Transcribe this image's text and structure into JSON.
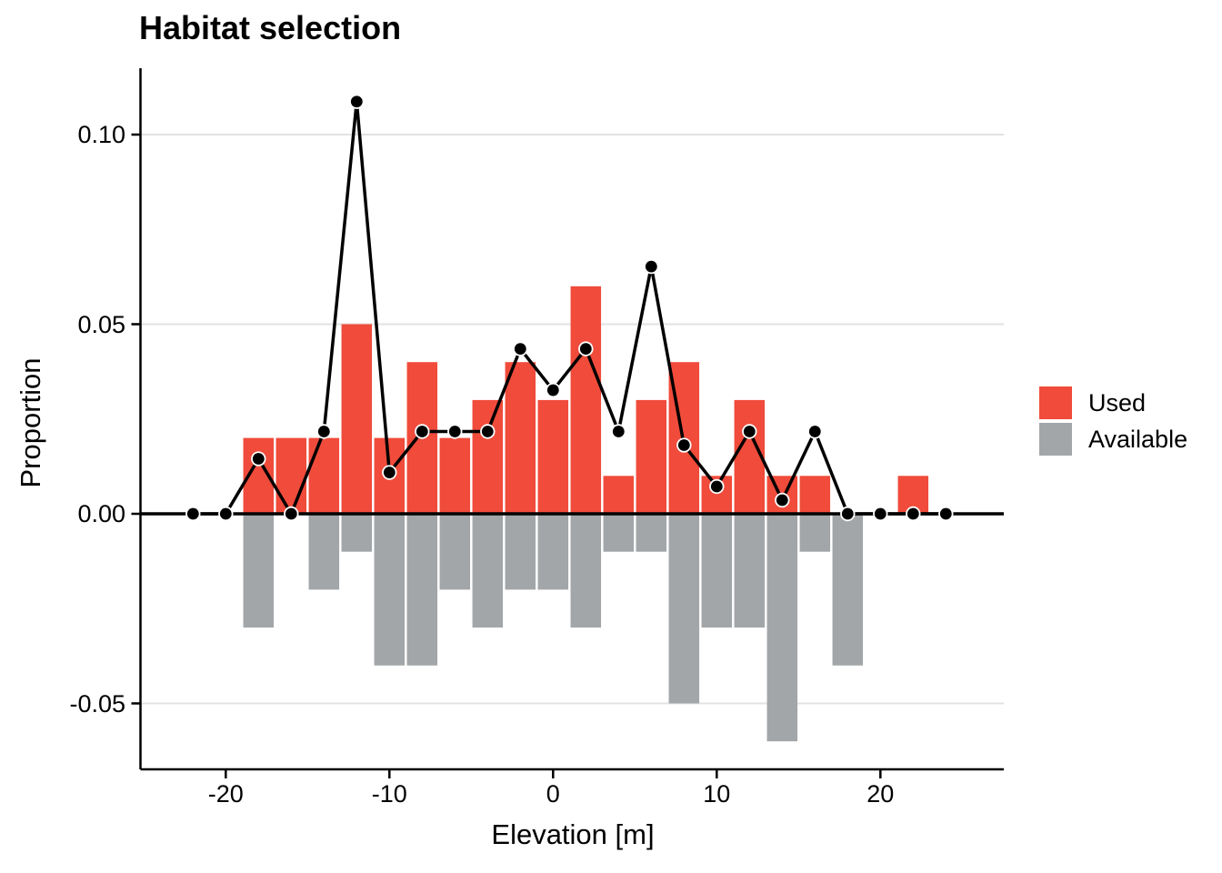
{
  "title": "Habitat selection",
  "axes": {
    "x_label": "Elevation [m]",
    "y_label": "Proportion",
    "x_tick_values": [
      -20,
      -10,
      0,
      10,
      20
    ],
    "x_tick_labels": [
      "-20",
      "-10",
      "0",
      "10",
      "20"
    ],
    "y_tick_values": [
      0.1,
      0.05,
      0.0,
      -0.05
    ],
    "y_tick_labels": [
      "0.10",
      "0.05",
      "0.00",
      "-0.05"
    ]
  },
  "legend": {
    "position": "right",
    "items": [
      {
        "label": "Used",
        "color": "#F04B3B"
      },
      {
        "label": "Available",
        "color": "#A2A6A9"
      }
    ]
  },
  "colors": {
    "used_bar": "#F04B3B",
    "available_bar": "#A2A6A9",
    "line": "#000000",
    "point_fill": "#000000",
    "point_ring": "#FFFFFF",
    "grid": "#E2E2E2",
    "axis": "#000000",
    "zero_line": "#000000",
    "text": "#000000",
    "background": "#FFFFFF"
  },
  "chart_data": {
    "type": "bar",
    "subtype": "back-to-back histogram (Used plotted upward, Available plotted downward as negative) with an overlaid black line-and-point series",
    "title": "Habitat selection",
    "xlabel": "Elevation [m]",
    "ylabel": "Proportion",
    "bin_width": 2,
    "x": [
      -22,
      -20,
      -18,
      -16,
      -14,
      -12,
      -10,
      -8,
      -6,
      -4,
      -2,
      0,
      2,
      4,
      6,
      8,
      10,
      12,
      14,
      16,
      18,
      20,
      22,
      24
    ],
    "series": [
      {
        "name": "Used",
        "type": "bar",
        "direction": "up",
        "color": "#F04B3B",
        "values": [
          0,
          0,
          0.02,
          0.02,
          0.02,
          0.05,
          0.02,
          0.04,
          0.02,
          0.03,
          0.04,
          0.03,
          0.06,
          0.01,
          0.03,
          0.04,
          0.01,
          0.03,
          0.01,
          0.01,
          0,
          0,
          0.01,
          0
        ]
      },
      {
        "name": "Available",
        "type": "bar",
        "direction": "down",
        "color": "#A2A6A9",
        "values": [
          0,
          0,
          0.03,
          0,
          0.02,
          0.01,
          0.04,
          0.04,
          0.02,
          0.03,
          0.02,
          0.02,
          0.03,
          0.01,
          0.01,
          0.05,
          0.03,
          0.03,
          0.06,
          0.01,
          0.04,
          0,
          0,
          0
        ]
      },
      {
        "name": "Used (line)",
        "type": "line+points",
        "color": "#000000",
        "values": [
          0,
          0,
          0.0145,
          0,
          0.0217,
          0.1087,
          0.0109,
          0.0217,
          0.0217,
          0.0217,
          0.0435,
          0.0326,
          0.0435,
          0.0217,
          0.0652,
          0.0181,
          0.0072,
          0.0217,
          0.0036,
          0.0217,
          0,
          0,
          0,
          0
        ]
      }
    ],
    "xlim": [
      -25.2,
      27.6
    ],
    "ylim": [
      -0.0675,
      0.1175
    ],
    "grid": "horizontal gridlines at y ticks only; y = 0 emphasized with a thick black line",
    "legend_position": "right"
  }
}
